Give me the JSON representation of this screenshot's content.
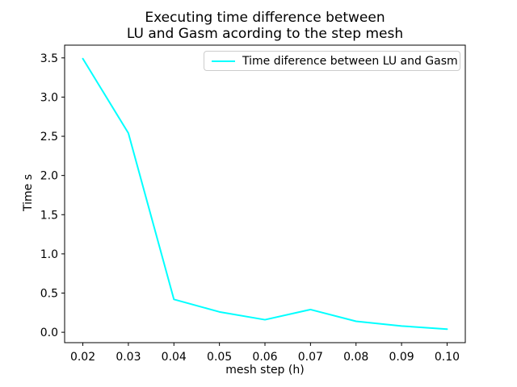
{
  "chart_data": {
    "type": "line",
    "title": "Executing time difference between\nLU and Gasm acording to the step mesh",
    "xlabel": "mesh step (h)",
    "ylabel": "Time s",
    "x": [
      0.02,
      0.03,
      0.04,
      0.05,
      0.06,
      0.07,
      0.08,
      0.09,
      0.1
    ],
    "series": [
      {
        "name": "Time diference between LU and Gasm",
        "values": [
          3.49,
          2.54,
          0.42,
          0.26,
          0.16,
          0.29,
          0.14,
          0.08,
          0.04
        ],
        "color": "#00FFFF"
      }
    ],
    "xlim": [
      0.016,
      0.104
    ],
    "ylim": [
      -0.1325,
      3.6625
    ],
    "xticks": [
      0.02,
      0.03,
      0.04,
      0.05,
      0.06,
      0.07,
      0.08,
      0.09,
      0.1
    ],
    "xtick_labels": [
      "0.02",
      "0.03",
      "0.04",
      "0.05",
      "0.06",
      "0.07",
      "0.08",
      "0.09",
      "0.10"
    ],
    "yticks": [
      0.0,
      0.5,
      1.0,
      1.5,
      2.0,
      2.5,
      3.0,
      3.5
    ],
    "ytick_labels": [
      "0.0",
      "0.5",
      "1.0",
      "1.5",
      "2.0",
      "2.5",
      "3.0",
      "3.5"
    ],
    "legend_position": "upper right",
    "grid": false,
    "axis_color": "#000000",
    "background": "#ffffff"
  }
}
